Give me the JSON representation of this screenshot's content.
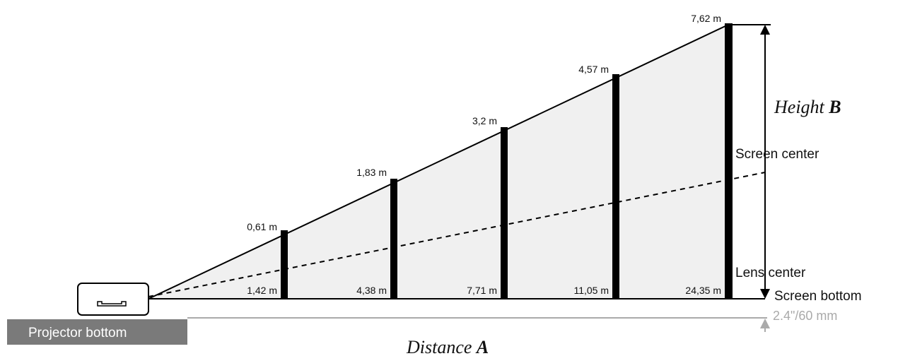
{
  "heights": [
    "0,61 m",
    "1,83 m",
    "3,2 m",
    "4,57 m",
    "7,62 m"
  ],
  "distances": [
    "1,42 m",
    "4,38 m",
    "7,71 m",
    "11,05 m",
    "24,35 m"
  ],
  "height_label": {
    "text": "Height",
    "emphasis": "B"
  },
  "distance_label": {
    "text": "Distance",
    "emphasis": "A"
  },
  "screen_center": "Screen center",
  "lens_center": "Lens center",
  "screen_bottom": "Screen bottom",
  "offset": "2.4\"/60 mm",
  "projector_bottom": "Projector bottom"
}
